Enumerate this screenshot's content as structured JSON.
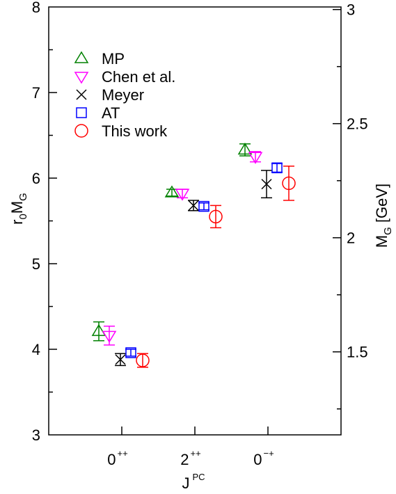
{
  "chart_data": {
    "type": "scatter",
    "title": "",
    "x": [
      "0",
      "2",
      "0"
    ],
    "x_tick_labels": [
      {
        "base": "0",
        "sup": "++"
      },
      {
        "base": "2",
        "sup": "++"
      },
      {
        "base": "0",
        "sup": "−+"
      }
    ],
    "xlabel": {
      "base": "J",
      "sup": "PC"
    },
    "ylabel_left": {
      "base": "r",
      "sub": "0",
      "tail": "M",
      "sub2": "G"
    },
    "ylabel_right": {
      "base": "M",
      "sub": "G",
      "tail": " [GeV]"
    },
    "ylim_left": [
      3,
      8
    ],
    "left_ticks": [
      3,
      4,
      5,
      6,
      7,
      8
    ],
    "left_tick_labels": [
      "3",
      "4",
      "5",
      "6",
      "7",
      "8"
    ],
    "right_ticks": [
      1.5,
      2,
      2.5,
      3
    ],
    "right_tick_labels": [
      "1.5",
      "2",
      "2.5",
      "3"
    ],
    "right_axis_note": "right axis M_G in GeV linear with r0M_G; 1.5 GeV ↔ 3.97, 3 GeV ↔ 7.97",
    "grid": false,
    "legend_position": "top-left",
    "series": [
      {
        "name": "MP",
        "marker": "triangle-up",
        "color": "#008000",
        "points": [
          {
            "y": 4.21,
            "err": 0.11
          },
          {
            "y": 5.83,
            "err": 0.04
          },
          {
            "y": 6.33,
            "err": 0.07
          }
        ]
      },
      {
        "name": "Chen et al.",
        "marker": "triangle-down",
        "color": "#ff00ff",
        "points": [
          {
            "y": 4.16,
            "err": 0.11
          },
          {
            "y": 5.82,
            "err": 0.05
          },
          {
            "y": 6.25,
            "err": 0.06
          }
        ]
      },
      {
        "name": "Meyer",
        "marker": "x",
        "color": "#000000",
        "points": [
          {
            "y": 3.88,
            "err": 0.07
          },
          {
            "y": 5.68,
            "err": 0.06
          },
          {
            "y": 5.93,
            "err": 0.16
          }
        ]
      },
      {
        "name": "AT",
        "marker": "square",
        "color": "#0000ff",
        "points": [
          {
            "y": 3.96,
            "err": 0.04
          },
          {
            "y": 5.67,
            "err": 0.04
          },
          {
            "y": 6.12,
            "err": 0.05
          }
        ]
      },
      {
        "name": "This work",
        "marker": "circle",
        "color": "#ff0000",
        "points": [
          {
            "y": 3.87,
            "err": 0.08
          },
          {
            "y": 5.55,
            "err": 0.13
          },
          {
            "y": 5.94,
            "err": 0.2
          }
        ]
      }
    ]
  }
}
